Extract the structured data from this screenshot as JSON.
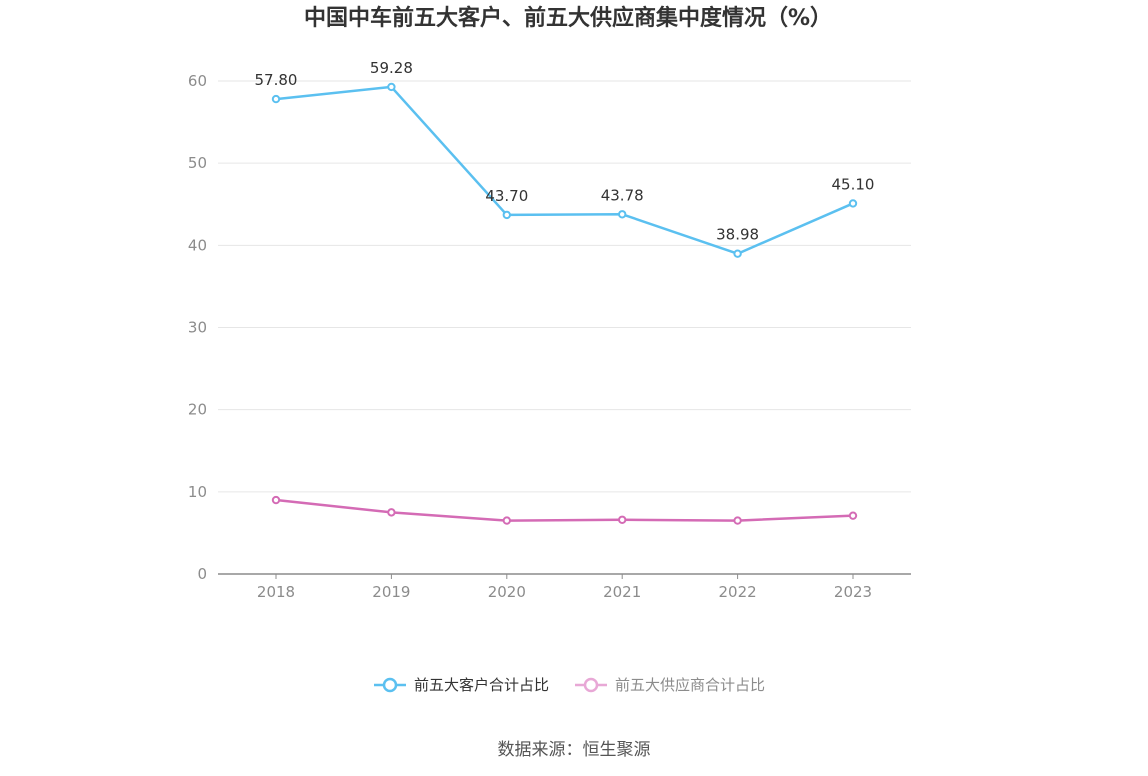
{
  "chart_data": {
    "type": "line",
    "title": "中国中车前五大客户、前五大供应商集中度情况（%）",
    "categories": [
      "2018",
      "2019",
      "2020",
      "2021",
      "2022",
      "2023"
    ],
    "ylim": [
      0,
      60
    ],
    "yticks": [
      "0",
      "10",
      "20",
      "30",
      "40",
      "50",
      "60"
    ],
    "grid": true,
    "legend_position": "bottom",
    "series": [
      {
        "name": "前五大客户合计占比",
        "values": [
          57.8,
          59.28,
          43.7,
          43.78,
          38.98,
          45.1
        ],
        "labels": [
          "57.80",
          "59.28",
          "43.70",
          "43.78",
          "38.98",
          "45.10"
        ],
        "color": "#5bc0f0"
      },
      {
        "name": "前五大供应商合计占比",
        "values": [
          9.0,
          7.5,
          6.5,
          6.6,
          6.5,
          7.1
        ],
        "color": "#d46bb5",
        "legend_color": "#e8a8d6"
      }
    ]
  },
  "source": "数据来源：恒生聚源"
}
